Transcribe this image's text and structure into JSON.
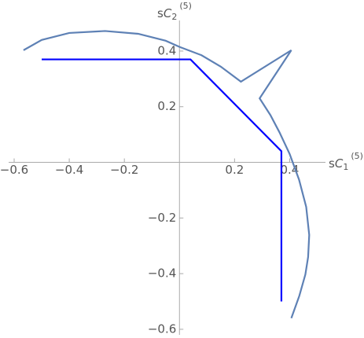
{
  "chart_data": {
    "type": "line",
    "x_label": {
      "prefix": "s",
      "var": "C",
      "sub": "1",
      "sup": "(5)"
    },
    "y_label": {
      "prefix": "s",
      "var": "C",
      "sub": "2",
      "sup": "(5)"
    },
    "xlim": [
      -0.62,
      0.53
    ],
    "ylim": [
      -0.62,
      0.51
    ],
    "xticks": [
      {
        "value": -0.6,
        "label": "−0.6"
      },
      {
        "value": -0.4,
        "label": "−0.4"
      },
      {
        "value": -0.2,
        "label": "−0.2"
      },
      0.2,
      0.4
    ],
    "yticks": [
      {
        "value": -0.6,
        "label": "−0.6"
      },
      {
        "value": -0.4,
        "label": "−0.4"
      },
      {
        "value": -0.2,
        "label": "−0.2"
      },
      0.2,
      0.4
    ],
    "series": [
      {
        "color": "#5e81b5",
        "x": [
          -0.566,
          -0.5,
          -0.4,
          -0.27,
          -0.15,
          -0.05,
          0,
          0.08,
          0.15,
          0.223,
          0.406,
          0.291,
          0.33,
          0.363,
          0.4,
          0.434,
          0.46,
          0.471,
          0.467,
          0.457,
          0.435,
          0.406
        ],
        "values": [
          0.403,
          0.44,
          0.465,
          0.472,
          0.462,
          0.437,
          0.415,
          0.385,
          0.344,
          0.29,
          0.403,
          0.23,
          0.17,
          0.108,
          0.03,
          -0.062,
          -0.16,
          -0.261,
          -0.34,
          -0.403,
          -0.48,
          -0.56
        ]
      },
      {
        "color": "#0000ff",
        "x": [
          -0.5,
          0.04,
          0.37,
          0.37
        ],
        "values": [
          0.37,
          0.37,
          0.04,
          -0.5
        ]
      }
    ]
  }
}
